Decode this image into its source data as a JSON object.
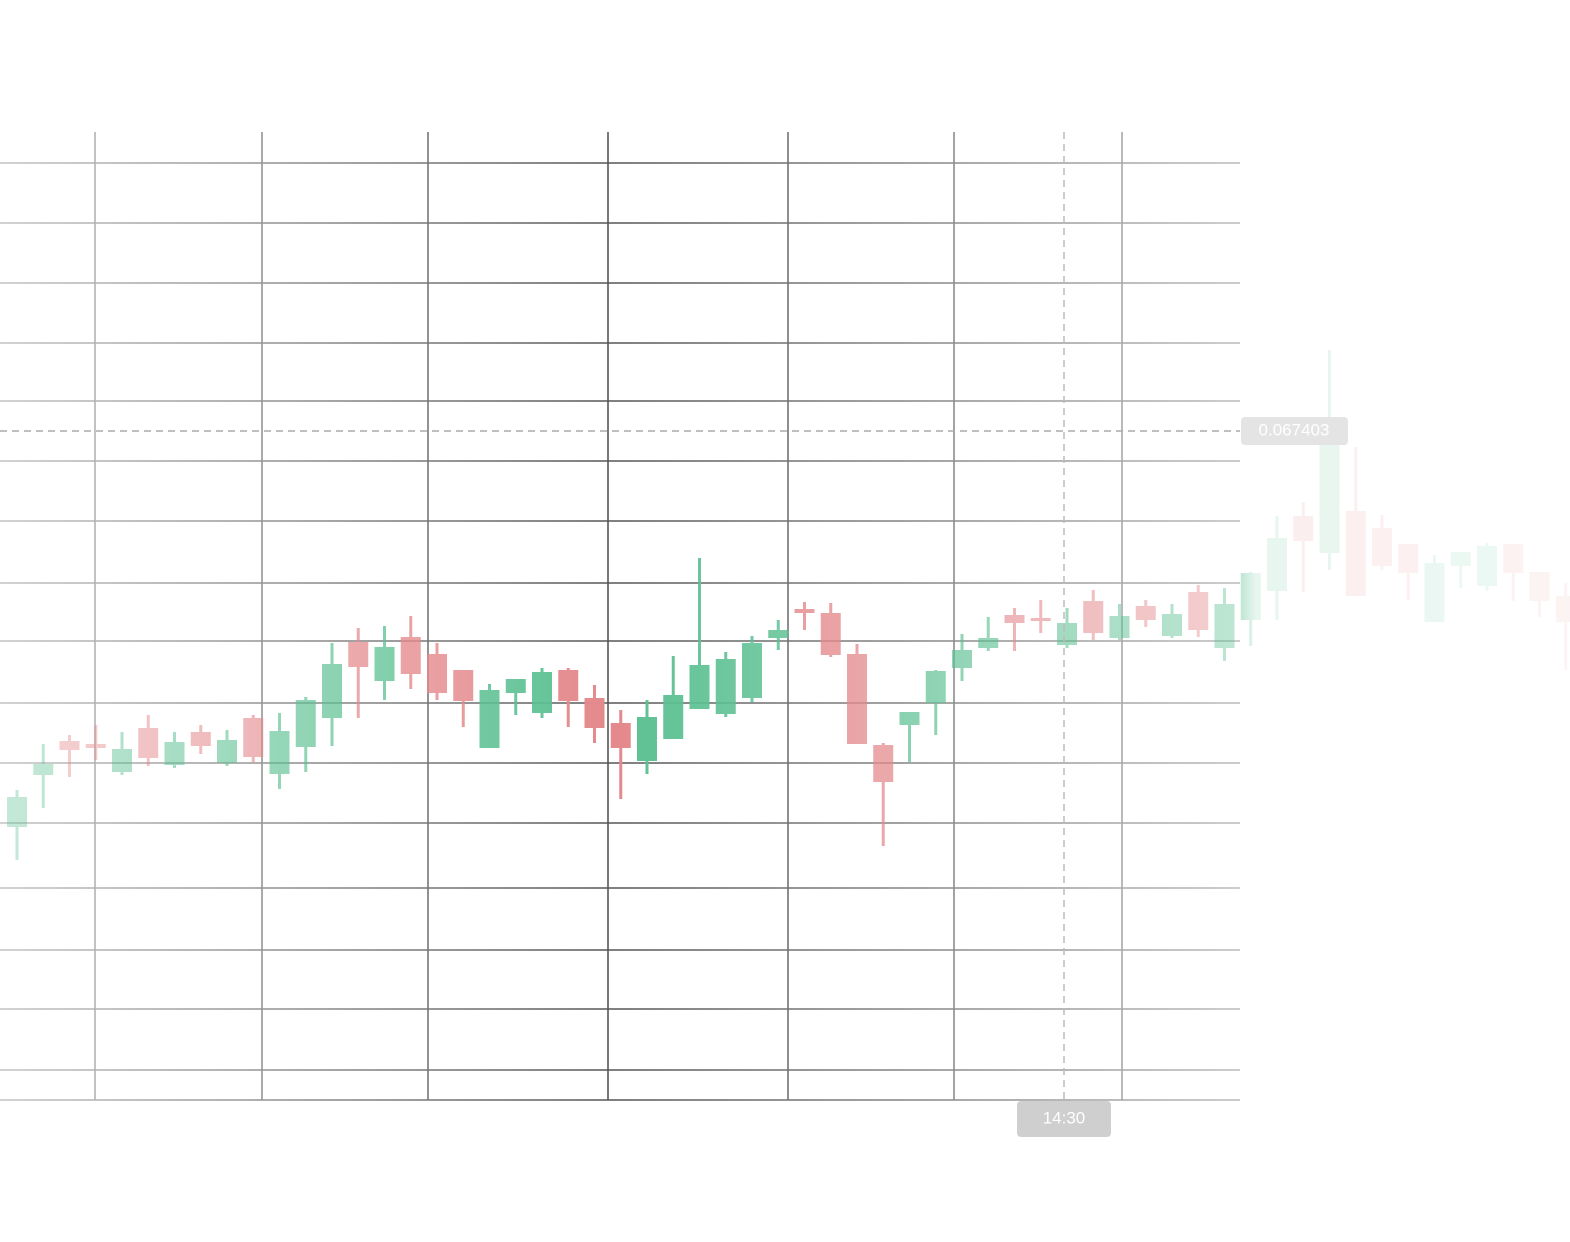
{
  "chart_data": {
    "type": "candlestick",
    "categories": [
      null,
      null,
      null,
      null,
      null,
      null,
      null,
      null,
      null,
      null,
      null,
      null,
      null,
      null,
      null,
      null,
      null,
      null,
      null,
      null,
      null,
      null,
      null,
      null,
      null,
      null,
      null,
      null,
      null,
      null,
      null,
      null,
      null,
      null,
      null,
      null,
      null,
      null,
      null,
      null,
      "14:30",
      null,
      null,
      null,
      null,
      null,
      null,
      null,
      null,
      null,
      null,
      null,
      null,
      null,
      null,
      null,
      null,
      null,
      null,
      null
    ],
    "open": [
      0.067007,
      0.067059,
      0.067093,
      0.06709,
      0.067062,
      0.067106,
      0.067069,
      0.067102,
      0.067071,
      0.067116,
      0.06706,
      0.067087,
      0.067116,
      0.067192,
      0.067153,
      0.067197,
      0.06718,
      0.067164,
      0.067086,
      0.067141,
      0.067121,
      0.067164,
      0.067136,
      0.067111,
      0.067073,
      0.067095,
      0.067125,
      0.06712,
      0.067136,
      0.067196,
      0.067225,
      0.067221,
      0.06718,
      0.067089,
      0.067109,
      0.067131,
      0.067166,
      0.067186,
      0.067219,
      0.067216,
      0.067189,
      0.067233,
      0.067196,
      0.067228,
      0.067198,
      0.067242,
      0.067186,
      0.067214,
      0.067243,
      0.067318,
      0.067281,
      0.067323,
      0.067306,
      0.06729,
      0.067212,
      0.067268,
      0.067248,
      0.06729,
      0.067262,
      0.067238
    ],
    "high": [
      0.067044,
      0.06709,
      0.067099,
      0.067109,
      0.067102,
      0.067119,
      0.067102,
      0.067109,
      0.067104,
      0.067119,
      0.067121,
      0.067137,
      0.067191,
      0.067206,
      0.067208,
      0.067218,
      0.067191,
      0.067164,
      0.06715,
      0.067155,
      0.067166,
      0.067166,
      0.067149,
      0.067124,
      0.067134,
      0.067178,
      0.067276,
      0.067182,
      0.067198,
      0.067214,
      0.067232,
      0.067231,
      0.06719,
      0.067091,
      0.067122,
      0.067164,
      0.0672,
      0.067217,
      0.067226,
      0.067234,
      0.067226,
      0.067244,
      0.06723,
      0.067234,
      0.06723,
      0.067249,
      0.067246,
      0.067262,
      0.067318,
      0.067332,
      0.067484,
      0.067387,
      0.067319,
      0.06729,
      0.067279,
      0.067282,
      0.067291,
      0.06729,
      0.067262,
      0.067251
    ],
    "low": [
      0.066974,
      0.067026,
      0.067057,
      0.067074,
      0.067059,
      0.067068,
      0.067066,
      0.06708,
      0.067068,
      0.067072,
      0.067045,
      0.067062,
      0.067088,
      0.067116,
      0.067134,
      0.067145,
      0.067134,
      0.067107,
      0.067086,
      0.067119,
      0.067116,
      0.067107,
      0.067091,
      0.067035,
      0.06706,
      0.067095,
      0.067125,
      0.067117,
      0.067132,
      0.067184,
      0.067204,
      0.067177,
      0.06709,
      0.066988,
      0.067072,
      0.067099,
      0.067153,
      0.067183,
      0.067183,
      0.067201,
      0.067186,
      0.067194,
      0.067194,
      0.067207,
      0.067196,
      0.067197,
      0.067173,
      0.067188,
      0.067214,
      0.067242,
      0.067264,
      0.067238,
      0.067264,
      0.067234,
      0.067212,
      0.067246,
      0.067243,
      0.067233,
      0.067217,
      0.067164
    ],
    "close": [
      0.067037,
      0.06707,
      0.067084,
      0.067086,
      0.067085,
      0.067076,
      0.067092,
      0.067088,
      0.067094,
      0.067077,
      0.067103,
      0.067134,
      0.06717,
      0.067167,
      0.067187,
      0.06716,
      0.067141,
      0.067133,
      0.067144,
      0.067155,
      0.067162,
      0.067133,
      0.067106,
      0.067086,
      0.067117,
      0.067139,
      0.067169,
      0.067175,
      0.067191,
      0.067204,
      0.067221,
      0.067179,
      0.06709,
      0.067052,
      0.067122,
      0.067163,
      0.067184,
      0.067196,
      0.067211,
      0.067213,
      0.067211,
      0.067201,
      0.067218,
      0.067214,
      0.06722,
      0.067204,
      0.06723,
      0.067261,
      0.067296,
      0.067293,
      0.06739,
      0.067238,
      0.067268,
      0.067261,
      0.067271,
      0.067282,
      0.067288,
      0.067261,
      0.067233,
      0.067212
    ],
    "up_color": "#5cc092",
    "down_color": "#e4898c",
    "ylim": [
      0.066734,
      0.067671
    ],
    "crosshair_price": 0.067403,
    "grid": true
  }
}
